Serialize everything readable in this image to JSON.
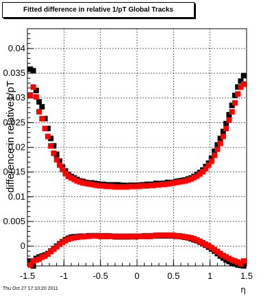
{
  "title": "Fitted difference in relative 1/pT  Global Tracks",
  "timestamp": "Thu Oct 27 17:10:20 2011",
  "chart_data": {
    "type": "scatter",
    "title": "Fitted difference in relative 1/pT  Global Tracks",
    "xlabel": "η",
    "ylabel": "difference in relative1/pT",
    "xlim": [
      -1.5,
      1.5
    ],
    "ylim": [
      -0.004,
      0.044
    ],
    "x_ticks": [
      "-1.5",
      "-1",
      "-0.5",
      "0",
      "0.5",
      "1",
      "1.5"
    ],
    "y_ticks": [
      "0",
      "0.005",
      "0.01",
      "0.015",
      "0.02",
      "0.025",
      "0.03",
      "0.035",
      "0.04"
    ],
    "grid": true,
    "series": [
      {
        "color": "#000000",
        "x": [
          -1.46,
          -1.42,
          -1.38,
          -1.34,
          -1.3,
          -1.26,
          -1.22,
          -1.18,
          -1.14,
          -1.1,
          -1.06,
          -1.02,
          -0.98,
          -0.94,
          -0.9,
          -0.86,
          -0.82,
          -0.78,
          -0.74,
          -0.7,
          -0.66,
          -0.62,
          -0.58,
          -0.54,
          -0.5,
          -0.46,
          -0.42,
          -0.38,
          -0.34,
          -0.3,
          -0.26,
          -0.22,
          -0.18,
          -0.14,
          -0.1,
          -0.06,
          -0.02,
          0.02,
          0.06,
          0.1,
          0.14,
          0.18,
          0.22,
          0.26,
          0.3,
          0.34,
          0.38,
          0.42,
          0.46,
          0.5,
          0.54,
          0.58,
          0.62,
          0.66,
          0.7,
          0.74,
          0.78,
          0.82,
          0.86,
          0.9,
          0.94,
          0.98,
          1.02,
          1.06,
          1.1,
          1.14,
          1.18,
          1.22,
          1.26,
          1.3,
          1.34,
          1.38,
          1.42,
          1.46
        ],
        "y": [
          0.0358,
          0.0355,
          0.0315,
          0.0292,
          0.0282,
          0.0258,
          0.0238,
          0.0218,
          0.0203,
          0.0186,
          0.0172,
          0.016,
          0.0152,
          0.0145,
          0.0141,
          0.0138,
          0.0135,
          0.0132,
          0.0131,
          0.0129,
          0.0128,
          0.0128,
          0.0127,
          0.0126,
          0.0125,
          0.0125,
          0.0124,
          0.0124,
          0.0124,
          0.0124,
          0.0124,
          0.0123,
          0.0123,
          0.0122,
          0.0123,
          0.0123,
          0.0123,
          0.0123,
          0.0124,
          0.0124,
          0.0125,
          0.0125,
          0.0125,
          0.0127,
          0.0126,
          0.0127,
          0.0127,
          0.0129,
          0.0128,
          0.0129,
          0.0131,
          0.0132,
          0.0133,
          0.0134,
          0.0136,
          0.0138,
          0.0141,
          0.0145,
          0.0149,
          0.0154,
          0.0161,
          0.0168,
          0.0178,
          0.0192,
          0.0205,
          0.0218,
          0.0232,
          0.0248,
          0.0266,
          0.0285,
          0.0305,
          0.0322,
          0.0334,
          0.0345
        ]
      },
      {
        "color": "#ff0000",
        "x": [
          -1.46,
          -1.42,
          -1.38,
          -1.34,
          -1.3,
          -1.26,
          -1.22,
          -1.18,
          -1.14,
          -1.1,
          -1.06,
          -1.02,
          -0.98,
          -0.94,
          -0.9,
          -0.86,
          -0.82,
          -0.78,
          -0.74,
          -0.7,
          -0.66,
          -0.62,
          -0.58,
          -0.54,
          -0.5,
          -0.46,
          -0.42,
          -0.38,
          -0.34,
          -0.3,
          -0.26,
          -0.22,
          -0.18,
          -0.14,
          -0.1,
          -0.06,
          -0.02,
          0.02,
          0.06,
          0.1,
          0.14,
          0.18,
          0.22,
          0.26,
          0.3,
          0.34,
          0.38,
          0.42,
          0.46,
          0.5,
          0.54,
          0.58,
          0.62,
          0.66,
          0.7,
          0.74,
          0.78,
          0.82,
          0.86,
          0.9,
          0.94,
          0.98,
          1.02,
          1.06,
          1.1,
          1.14,
          1.18,
          1.22,
          1.26,
          1.3,
          1.34,
          1.38,
          1.42,
          1.46
        ],
        "y": [
          0.0306,
          0.0322,
          0.0302,
          0.0272,
          0.0258,
          0.0238,
          0.0222,
          0.0203,
          0.0188,
          0.0175,
          0.0164,
          0.0155,
          0.0147,
          0.0141,
          0.0138,
          0.0135,
          0.0132,
          0.013,
          0.0128,
          0.0127,
          0.0126,
          0.0125,
          0.0124,
          0.0123,
          0.0122,
          0.0122,
          0.0121,
          0.0121,
          0.0121,
          0.012,
          0.012,
          0.012,
          0.012,
          0.012,
          0.0121,
          0.0121,
          0.0121,
          0.0121,
          0.0122,
          0.0122,
          0.0122,
          0.0123,
          0.0123,
          0.0124,
          0.0124,
          0.0125,
          0.0125,
          0.0126,
          0.0127,
          0.0128,
          0.0129,
          0.013,
          0.0131,
          0.0132,
          0.0134,
          0.0136,
          0.0139,
          0.0142,
          0.0146,
          0.0151,
          0.0157,
          0.0164,
          0.0172,
          0.0184,
          0.0196,
          0.0208,
          0.0222,
          0.0238,
          0.0255,
          0.0272,
          0.029,
          0.0308,
          0.0322,
          0.0328
        ]
      },
      {
        "color": "#000000",
        "x": [
          -1.46,
          -1.42,
          -1.38,
          -1.34,
          -1.3,
          -1.26,
          -1.22,
          -1.18,
          -1.14,
          -1.1,
          -1.06,
          -1.02,
          -0.98,
          -0.94,
          -0.9,
          -0.86,
          -0.82,
          -0.78,
          -0.74,
          -0.7,
          -0.66,
          -0.62,
          -0.58,
          -0.54,
          -0.5,
          -0.46,
          -0.42,
          -0.38,
          -0.34,
          -0.3,
          -0.26,
          -0.22,
          -0.18,
          -0.14,
          -0.1,
          -0.06,
          -0.02,
          0.02,
          0.06,
          0.1,
          0.14,
          0.18,
          0.22,
          0.26,
          0.3,
          0.34,
          0.38,
          0.42,
          0.46,
          0.5,
          0.54,
          0.58,
          0.62,
          0.66,
          0.7,
          0.74,
          0.78,
          0.82,
          0.86,
          0.9,
          0.94,
          0.98,
          1.02,
          1.06,
          1.1,
          1.14,
          1.18,
          1.22,
          1.26,
          1.3,
          1.34,
          1.38,
          1.42,
          1.46
        ],
        "y": [
          -0.003,
          -0.004,
          -0.0025,
          -0.0022,
          -0.002,
          -0.0018,
          -0.0015,
          -0.001,
          -0.0005,
          0.0,
          0.0005,
          0.0009,
          0.0013,
          0.0016,
          0.0018,
          0.0019,
          0.0019,
          0.002,
          0.002,
          0.002,
          0.0021,
          0.0021,
          0.0021,
          0.0021,
          0.002,
          0.002,
          0.002,
          0.002,
          0.002,
          0.0019,
          0.0019,
          0.0019,
          0.0019,
          0.0019,
          0.0019,
          0.002,
          0.0019,
          0.002,
          0.002,
          0.002,
          0.002,
          0.002,
          0.0021,
          0.0021,
          0.0021,
          0.0021,
          0.0021,
          0.0021,
          0.0021,
          0.0021,
          0.002,
          0.002,
          0.0019,
          0.0018,
          0.0017,
          0.0015,
          0.0013,
          0.0011,
          0.0008,
          0.0005,
          0.0002,
          -0.0002,
          -0.0006,
          -0.001,
          -0.0015,
          -0.002,
          -0.0024,
          -0.0028,
          -0.0031,
          -0.0034,
          -0.0036,
          -0.0038,
          -0.0039,
          -0.004
        ]
      },
      {
        "color": "#ff0000",
        "x": [
          -1.46,
          -1.42,
          -1.38,
          -1.34,
          -1.3,
          -1.26,
          -1.22,
          -1.18,
          -1.14,
          -1.1,
          -1.06,
          -1.02,
          -0.98,
          -0.94,
          -0.9,
          -0.86,
          -0.82,
          -0.78,
          -0.74,
          -0.7,
          -0.66,
          -0.62,
          -0.58,
          -0.54,
          -0.5,
          -0.46,
          -0.42,
          -0.38,
          -0.34,
          -0.3,
          -0.26,
          -0.22,
          -0.18,
          -0.14,
          -0.1,
          -0.06,
          -0.02,
          0.02,
          0.06,
          0.1,
          0.14,
          0.18,
          0.22,
          0.26,
          0.3,
          0.34,
          0.38,
          0.42,
          0.46,
          0.5,
          0.54,
          0.58,
          0.62,
          0.66,
          0.7,
          0.74,
          0.78,
          0.82,
          0.86,
          0.9,
          0.94,
          0.98,
          1.02,
          1.06,
          1.1,
          1.14,
          1.18,
          1.22,
          1.26,
          1.3,
          1.34,
          1.38,
          1.42,
          1.46
        ],
        "y": [
          -0.0038,
          -0.003,
          -0.0028,
          -0.0026,
          -0.0022,
          -0.002,
          -0.0016,
          -0.0011,
          -0.0006,
          -0.0001,
          0.0004,
          0.0008,
          0.0011,
          0.0014,
          0.0016,
          0.0017,
          0.0018,
          0.0019,
          0.0019,
          0.002,
          0.002,
          0.0021,
          0.0021,
          0.0021,
          0.0021,
          0.0021,
          0.0021,
          0.0021,
          0.002,
          0.002,
          0.002,
          0.002,
          0.002,
          0.002,
          0.002,
          0.002,
          0.002,
          0.002,
          0.002,
          0.0021,
          0.0021,
          0.0021,
          0.0021,
          0.0022,
          0.0022,
          0.0022,
          0.0022,
          0.0022,
          0.0022,
          0.0022,
          0.0021,
          0.0021,
          0.002,
          0.0019,
          0.0018,
          0.0017,
          0.0015,
          0.0013,
          0.001,
          0.0007,
          0.0004,
          0.0001,
          -0.0003,
          -0.0007,
          -0.0011,
          -0.0015,
          -0.0019,
          -0.0022,
          -0.0025,
          -0.0028,
          -0.003,
          -0.0032,
          -0.0036,
          -0.003
        ]
      }
    ]
  }
}
